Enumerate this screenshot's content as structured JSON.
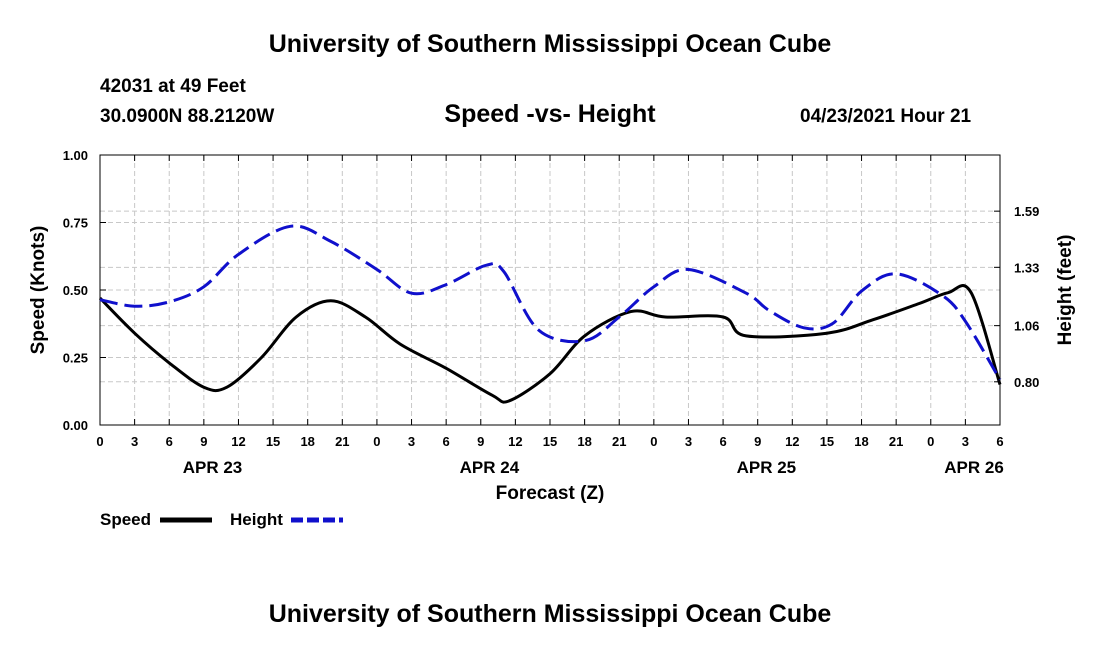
{
  "header": {
    "title": "University of Southern Mississippi Ocean Cube",
    "station": "42031 at 49 Feet",
    "coords": "30.0900N  88.2120W",
    "subtitle": "Speed -vs- Height",
    "date": "04/23/2021 Hour 21"
  },
  "footer": {
    "title": "University of Southern Mississippi Ocean Cube"
  },
  "chart_data": {
    "type": "line",
    "title": "Speed -vs- Height",
    "xlabel": "Forecast (Z)",
    "ylabel": "Speed (Knots)",
    "y2label": "Height (feet)",
    "xlim": [
      0,
      78
    ],
    "ylim": [
      0,
      1
    ],
    "y2lim": [
      0.6,
      1.85
    ],
    "grid": true,
    "x_tick_labels": [
      "0",
      "3",
      "6",
      "9",
      "12",
      "15",
      "18",
      "21",
      "0",
      "3",
      "6",
      "9",
      "12",
      "15",
      "18",
      "21",
      "0",
      "3",
      "6",
      "9",
      "12",
      "15",
      "18",
      "21",
      "0",
      "3",
      "6"
    ],
    "day_labels": [
      {
        "label": "APR 23",
        "x": 9.75
      },
      {
        "label": "APR 24",
        "x": 33.75
      },
      {
        "label": "APR 25",
        "x": 57.75
      },
      {
        "label": "APR 26",
        "x": 75.75
      }
    ],
    "y_ticks": [
      "0.00",
      "0.25",
      "0.50",
      "0.75",
      "1.00"
    ],
    "y2_ticks": [
      "0.80",
      "1.06",
      "1.33",
      "1.59"
    ],
    "series": [
      {
        "name": "Speed",
        "axis": "left",
        "color": "#000000",
        "dash": "solid",
        "x": [
          0,
          3,
          6,
          9,
          11,
          14,
          17,
          20,
          23,
          26,
          30,
          34,
          35.5,
          39,
          42,
          46,
          49,
          54,
          56,
          63,
          67,
          71,
          73.5,
          75.5,
          78
        ],
        "values": [
          0.47,
          0.34,
          0.23,
          0.14,
          0.14,
          0.25,
          0.4,
          0.46,
          0.4,
          0.3,
          0.21,
          0.11,
          0.09,
          0.19,
          0.33,
          0.42,
          0.4,
          0.4,
          0.33,
          0.34,
          0.39,
          0.45,
          0.49,
          0.49,
          0.15
        ]
      },
      {
        "name": "Height",
        "axis": "right",
        "color": "#1010cc",
        "dash": "dashed",
        "x": [
          0,
          3,
          6,
          9,
          12,
          16.5,
          20,
          24,
          27,
          30,
          33.5,
          35,
          38,
          42,
          45,
          48,
          51,
          56,
          58,
          61,
          63.5,
          66,
          69,
          73,
          75,
          78
        ],
        "values": [
          1.18,
          1.15,
          1.17,
          1.24,
          1.39,
          1.52,
          1.45,
          1.32,
          1.21,
          1.25,
          1.34,
          1.31,
          1.04,
          0.99,
          1.1,
          1.24,
          1.32,
          1.21,
          1.13,
          1.05,
          1.07,
          1.22,
          1.3,
          1.2,
          1.08,
          0.81
        ]
      }
    ],
    "legend": [
      {
        "label": "Speed",
        "color": "#000000",
        "dash": "solid"
      },
      {
        "label": "Height",
        "color": "#1010cc",
        "dash": "dashed"
      }
    ],
    "legend_position": "bottom-left"
  }
}
